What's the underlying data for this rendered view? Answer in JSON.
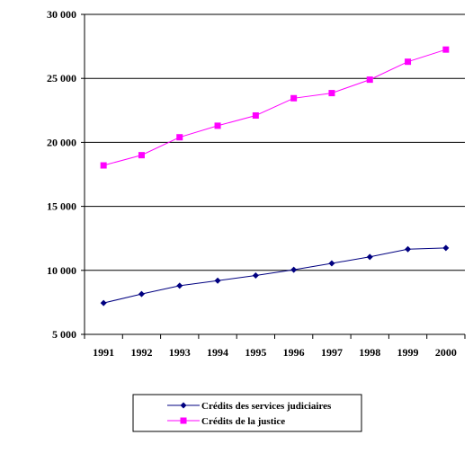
{
  "chart_data": {
    "type": "line",
    "x": [
      "1991",
      "1992",
      "1993",
      "1994",
      "1995",
      "1996",
      "1997",
      "1998",
      "1999",
      "2000"
    ],
    "ylim": [
      5000,
      30000
    ],
    "yticks": [
      5000,
      10000,
      15000,
      20000,
      25000,
      30000
    ],
    "ytick_labels": [
      "5 000",
      "10 000",
      "15 000",
      "20 000",
      "25 000",
      "30 000"
    ],
    "grid": "horizontal",
    "legend_position": "bottom",
    "series": [
      {
        "name": "Crédits des services judiciaires",
        "color": "#000080",
        "marker": "diamond",
        "values": [
          7450,
          8150,
          8800,
          9200,
          9600,
          10050,
          10550,
          11050,
          11650,
          11750
        ]
      },
      {
        "name": "Crédits de la justice",
        "color": "#ff00ff",
        "marker": "square",
        "values": [
          18200,
          19000,
          20400,
          21300,
          22100,
          23450,
          23850,
          24900,
          26300,
          27250
        ]
      }
    ]
  }
}
